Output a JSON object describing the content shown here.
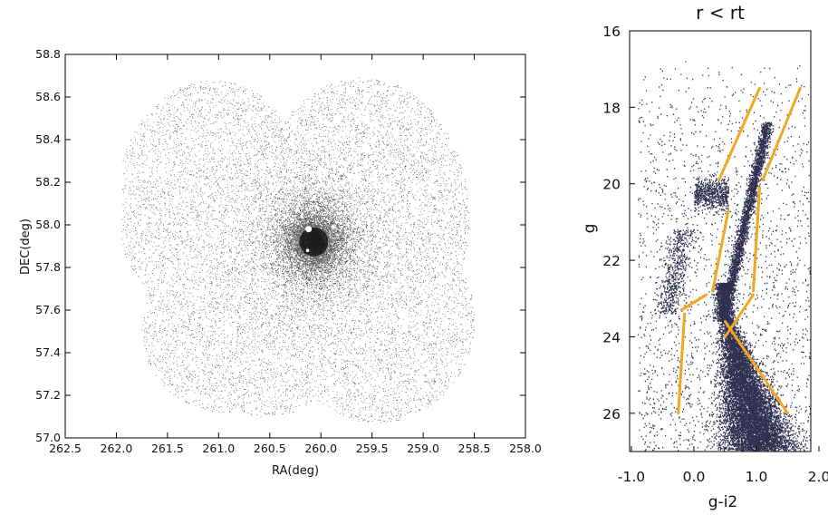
{
  "chart_data": [
    {
      "type": "scatter",
      "title": "",
      "xlabel": "RA(deg)",
      "ylabel": "DEC(deg)",
      "xlim": [
        262.5,
        258.0
      ],
      "ylim": [
        57.0,
        58.8
      ],
      "x_inverted": true,
      "xticks": [
        "262.5",
        "262.0",
        "261.5",
        "261.0",
        "260.5",
        "260.0",
        "259.5",
        "259.0",
        "258.5",
        "258.0"
      ],
      "yticks": [
        "57.0",
        "57.2",
        "57.4",
        "57.6",
        "57.8",
        "58.0",
        "58.2",
        "58.4",
        "58.6",
        "58.8"
      ],
      "cluster_center": [
        260.07,
        57.92
      ],
      "marker_color": "#000000",
      "grid": false,
      "legend": "none"
    },
    {
      "type": "scatter",
      "title": "r < rt",
      "xlabel": "g-i2",
      "ylabel": "g",
      "xlim": [
        -1.0,
        2.0
      ],
      "ylim": [
        27.0,
        16.0
      ],
      "y_inverted": true,
      "xticks": [
        "-1.0",
        "0.0",
        "1.0",
        "2.0"
      ],
      "yticks": [
        "16",
        "18",
        "20",
        "22",
        "24",
        "26"
      ],
      "marker_color": "#0b0b30",
      "grid": false,
      "legend": "none",
      "selection_boundary_color": "#f0a820",
      "selection_boundary": [
        [
          [
            -0.25,
            26.0
          ],
          [
            -0.15,
            23.4
          ]
        ],
        [
          [
            -0.2,
            23.3
          ],
          [
            0.2,
            22.9
          ]
        ],
        [
          [
            0.3,
            22.8
          ],
          [
            0.55,
            20.7
          ]
        ],
        [
          [
            0.5,
            24.0
          ],
          [
            0.95,
            22.9
          ]
        ],
        [
          [
            0.95,
            22.8
          ],
          [
            1.05,
            20.1
          ]
        ],
        [
          [
            0.5,
            23.6
          ],
          [
            1.5,
            26.0
          ]
        ],
        [
          [
            0.4,
            19.9
          ],
          [
            1.05,
            17.5
          ]
        ],
        [
          [
            1.1,
            19.9
          ],
          [
            1.7,
            17.5
          ]
        ]
      ]
    }
  ]
}
